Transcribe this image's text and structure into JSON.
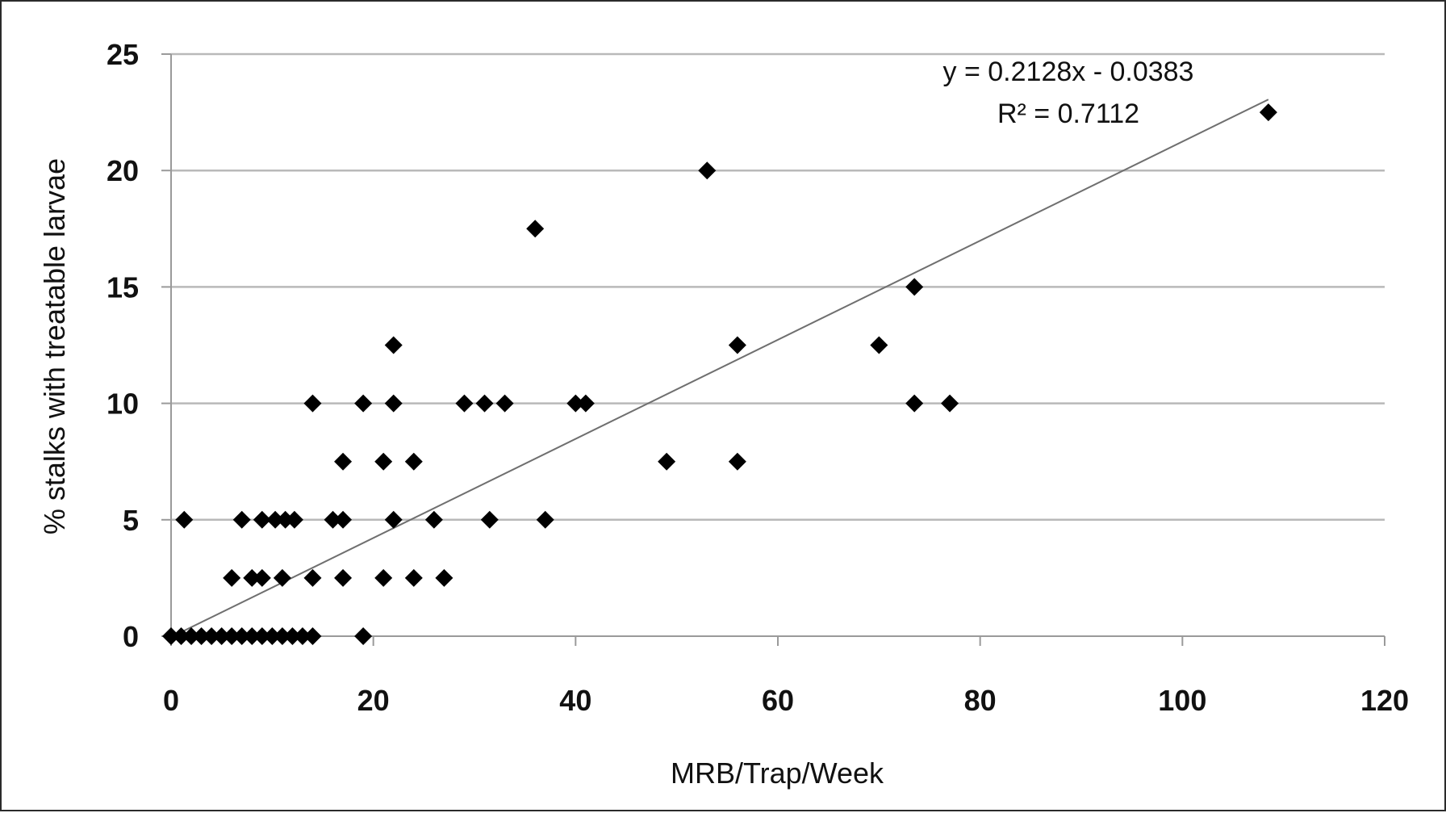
{
  "chart_data": {
    "type": "scatter",
    "title": "",
    "xlabel": "MRB/Trap/Week",
    "ylabel": "% stalks with treatable larvae",
    "xlim": [
      0,
      120
    ],
    "ylim": [
      0,
      25
    ],
    "xticks": [
      "0",
      "20",
      "40",
      "60",
      "80",
      "100",
      "120"
    ],
    "yticks": [
      "0",
      "5",
      "10",
      "15",
      "20",
      "25"
    ],
    "grid": "horizontal",
    "legend": "none",
    "marker": "diamond",
    "marker_color": "#000000",
    "points": [
      {
        "x": 0,
        "y": 0
      },
      {
        "x": 1,
        "y": 0
      },
      {
        "x": 2,
        "y": 0
      },
      {
        "x": 3,
        "y": 0
      },
      {
        "x": 4,
        "y": 0
      },
      {
        "x": 5,
        "y": 0
      },
      {
        "x": 6,
        "y": 0
      },
      {
        "x": 7,
        "y": 0
      },
      {
        "x": 8,
        "y": 0
      },
      {
        "x": 9,
        "y": 0
      },
      {
        "x": 10,
        "y": 0
      },
      {
        "x": 11,
        "y": 0
      },
      {
        "x": 12,
        "y": 0
      },
      {
        "x": 13,
        "y": 0
      },
      {
        "x": 14,
        "y": 0
      },
      {
        "x": 19,
        "y": 0
      },
      {
        "x": 1.3,
        "y": 5
      },
      {
        "x": 7,
        "y": 5
      },
      {
        "x": 9,
        "y": 5
      },
      {
        "x": 10.3,
        "y": 5
      },
      {
        "x": 11.3,
        "y": 5
      },
      {
        "x": 12.2,
        "y": 5
      },
      {
        "x": 16,
        "y": 5
      },
      {
        "x": 17,
        "y": 5
      },
      {
        "x": 22,
        "y": 5
      },
      {
        "x": 26,
        "y": 5
      },
      {
        "x": 31.5,
        "y": 5
      },
      {
        "x": 37,
        "y": 5
      },
      {
        "x": 6,
        "y": 2.5
      },
      {
        "x": 8,
        "y": 2.5
      },
      {
        "x": 9,
        "y": 2.5
      },
      {
        "x": 11,
        "y": 2.5
      },
      {
        "x": 14,
        "y": 2.5
      },
      {
        "x": 17,
        "y": 2.5
      },
      {
        "x": 21,
        "y": 2.5
      },
      {
        "x": 24,
        "y": 2.5
      },
      {
        "x": 27,
        "y": 2.5
      },
      {
        "x": 17,
        "y": 7.5
      },
      {
        "x": 21,
        "y": 7.5
      },
      {
        "x": 24,
        "y": 7.5
      },
      {
        "x": 49,
        "y": 7.5
      },
      {
        "x": 56,
        "y": 7.5
      },
      {
        "x": 14,
        "y": 10
      },
      {
        "x": 19,
        "y": 10
      },
      {
        "x": 22,
        "y": 10
      },
      {
        "x": 29,
        "y": 10
      },
      {
        "x": 31,
        "y": 10
      },
      {
        "x": 33,
        "y": 10
      },
      {
        "x": 40,
        "y": 10
      },
      {
        "x": 41,
        "y": 10
      },
      {
        "x": 73.5,
        "y": 10
      },
      {
        "x": 77,
        "y": 10
      },
      {
        "x": 22,
        "y": 12.5
      },
      {
        "x": 56,
        "y": 12.5
      },
      {
        "x": 70,
        "y": 12.5
      },
      {
        "x": 73.5,
        "y": 15
      },
      {
        "x": 36,
        "y": 17.5
      },
      {
        "x": 53,
        "y": 20
      },
      {
        "x": 108.5,
        "y": 22.5
      }
    ],
    "trendline": {
      "type": "linear",
      "slope": 0.2128,
      "intercept": -0.0383,
      "x_range": [
        0,
        108.5
      ],
      "equation_label": "y = 0.2128x - 0.0383",
      "r2_label": "R² = 0.7112"
    }
  }
}
